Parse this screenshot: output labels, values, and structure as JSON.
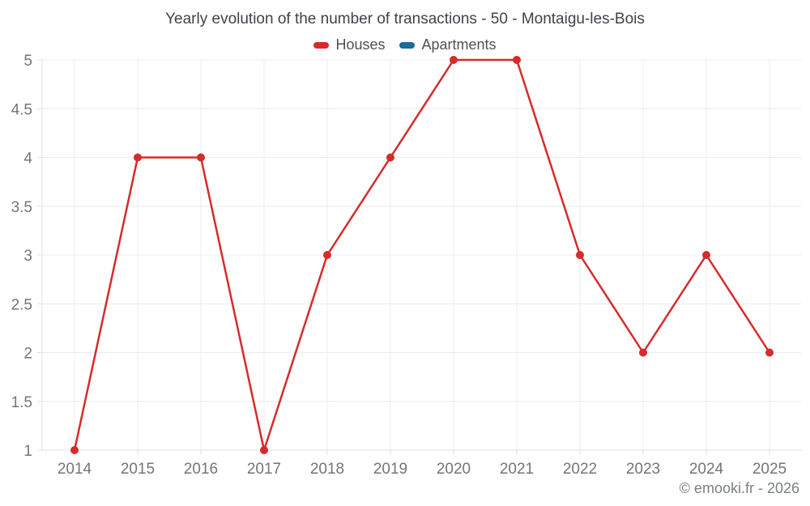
{
  "chart": {
    "watermark": "© emooki.fr - 2026"
  },
  "colors": {
    "gridline": "#ececec",
    "axis": "#e0e0e0",
    "tick_label": "#757575",
    "title_text": "#3f4349",
    "legend_text": "#4d5156",
    "houses_red": "#d62b2b",
    "apartments_blue": "#1b6d98"
  },
  "chart_data": {
    "type": "line",
    "title": "Yearly evolution of the number of transactions - 50 - Montaigu-les-Bois",
    "xlabel": "",
    "ylabel": "",
    "categories": [
      "2014",
      "2015",
      "2016",
      "2017",
      "2018",
      "2019",
      "2020",
      "2021",
      "2022",
      "2023",
      "2024",
      "2025"
    ],
    "series": [
      {
        "name": "Houses",
        "color": "#d62b2b",
        "marker": "circle",
        "values": [
          1,
          4,
          4,
          1,
          3,
          4,
          5,
          5,
          3,
          2,
          3,
          2
        ]
      },
      {
        "name": "Apartments",
        "color": "#1b6d98",
        "marker": "circle",
        "values": [
          null,
          null,
          null,
          null,
          null,
          null,
          null,
          null,
          null,
          null,
          null,
          null
        ]
      }
    ],
    "ylim": [
      1,
      5
    ],
    "yticks": [
      1,
      1.5,
      2,
      2.5,
      3,
      3.5,
      4,
      4.5,
      5
    ],
    "ytick_labels": [
      "1",
      "1.5",
      "2",
      "2.5",
      "3",
      "3.5",
      "4",
      "4.5",
      "5"
    ],
    "grid": true,
    "legend_position": "top"
  }
}
